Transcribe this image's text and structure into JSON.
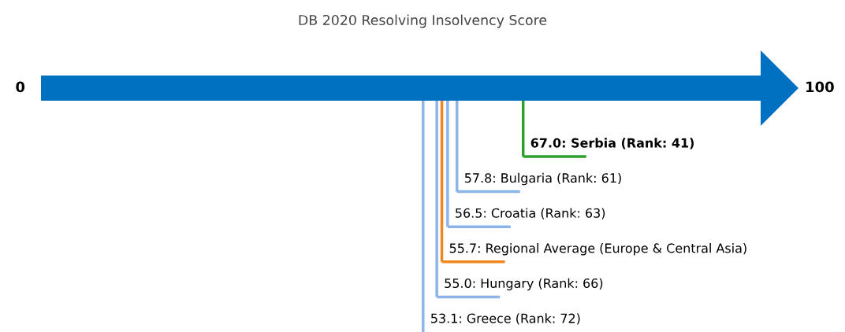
{
  "chart_data": {
    "type": "other",
    "title": "DB 2020 Resolving Insolvency Score",
    "annotations": [
      "0",
      "100"
    ],
    "values": [
      67.0,
      57.8,
      56.5,
      55.7,
      55.0,
      53.1
    ],
    "value_labels": [
      "67.0: Serbia (Rank: 41)",
      "57.8: Bulgaria (Rank: 61)",
      "56.5: Croatia (Rank: 63)",
      "55.7: Regional Average (Europe & Central Asia)",
      "55.0: Hungary (Rank: 66)",
      "53.1: Greece (Rank: 72)"
    ],
    "colors": [
      "#2ca02c",
      "#8db4e8",
      "#8db4e8",
      "#f0871e",
      "#8db4e8",
      "#8db4e8"
    ],
    "color": "#0070c0"
  }
}
